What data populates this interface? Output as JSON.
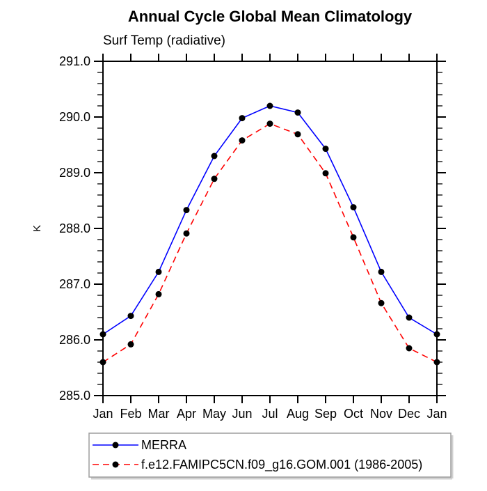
{
  "title": "Annual Cycle Global Mean Climatology",
  "subtitle": "Surf Temp (radiative)",
  "chart_data": {
    "type": "line",
    "title": "Annual Cycle Global Mean Climatology",
    "subtitle": "Surf Temp (radiative)",
    "xlabel": "",
    "ylabel": "K",
    "x_categories": [
      "Jan",
      "Feb",
      "Mar",
      "Apr",
      "May",
      "Jun",
      "Jul",
      "Aug",
      "Sep",
      "Oct",
      "Nov",
      "Dec",
      "Jan"
    ],
    "ylim": [
      285.0,
      291.0
    ],
    "ytick_major_step": 1.0,
    "ytick_minor_step": 0.2,
    "ytick_label_format_decimals": 1,
    "grid": "off",
    "legend_position": "bottom-left",
    "marker_color": "#000000",
    "series": [
      {
        "name": "MERRA",
        "color": "#0000ff",
        "line_style": "solid",
        "marker": "filled-circle",
        "values": [
          286.1,
          286.43,
          287.22,
          288.33,
          289.3,
          289.98,
          290.2,
          290.08,
          289.43,
          288.38,
          287.22,
          286.4,
          286.1
        ]
      },
      {
        "name": "f.e12.FAMIPC5CN.f09_g16.GOM.001 (1986-2005)",
        "color": "#ff0000",
        "line_style": "dashed",
        "marker": "filled-circle",
        "values": [
          285.6,
          285.92,
          286.82,
          287.91,
          288.89,
          289.58,
          289.88,
          289.69,
          288.99,
          287.84,
          286.66,
          285.85,
          285.6
        ]
      }
    ]
  }
}
